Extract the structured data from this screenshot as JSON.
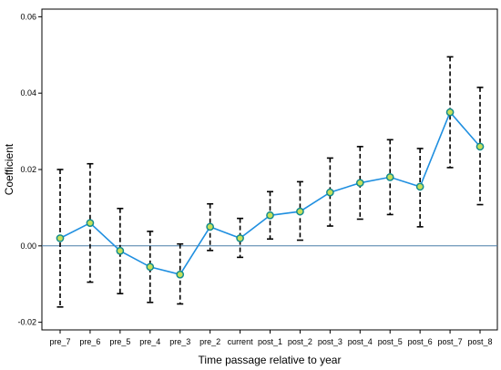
{
  "chart_data": {
    "type": "line",
    "title": "",
    "xlabel": "Time passage relative to year",
    "ylabel": "Coefficient",
    "categories": [
      "pre_7",
      "pre_6",
      "pre_5",
      "pre_4",
      "pre_3",
      "pre_2",
      "current",
      "post_1",
      "post_2",
      "post_3",
      "post_4",
      "post_5",
      "post_6",
      "post_7",
      "post_8"
    ],
    "series": [
      {
        "values": [
          0.002,
          0.006,
          -0.0013,
          -0.0055,
          -0.0075,
          0.005,
          0.002,
          0.008,
          0.009,
          0.014,
          0.0165,
          0.018,
          0.0155,
          0.035,
          0.026
        ],
        "ci_lower": [
          -0.016,
          -0.0095,
          -0.0125,
          -0.0148,
          -0.0152,
          -0.0012,
          -0.003,
          0.0018,
          0.0015,
          0.0052,
          0.007,
          0.0082,
          0.005,
          0.0205,
          0.0108
        ],
        "ci_upper": [
          0.02,
          0.0215,
          0.0098,
          0.0038,
          0.0005,
          0.011,
          0.0072,
          0.0142,
          0.0168,
          0.023,
          0.026,
          0.0278,
          0.0255,
          0.0495,
          0.0415
        ]
      }
    ],
    "ylim": [
      -0.022,
      0.062
    ],
    "yticks": [
      "0.06",
      "0.04",
      "0.02",
      "0.00",
      "-0.02"
    ],
    "ytick_values": [
      0.06,
      0.04,
      0.02,
      0.0,
      -0.02
    ],
    "reference_line": 0,
    "grid": false,
    "colors": {
      "line": "#1f8fe0",
      "reference": "#4a7ea8",
      "marker_fill": "#c8e05a",
      "marker_edge": "#138c8c",
      "errorbar": "#000000"
    }
  }
}
